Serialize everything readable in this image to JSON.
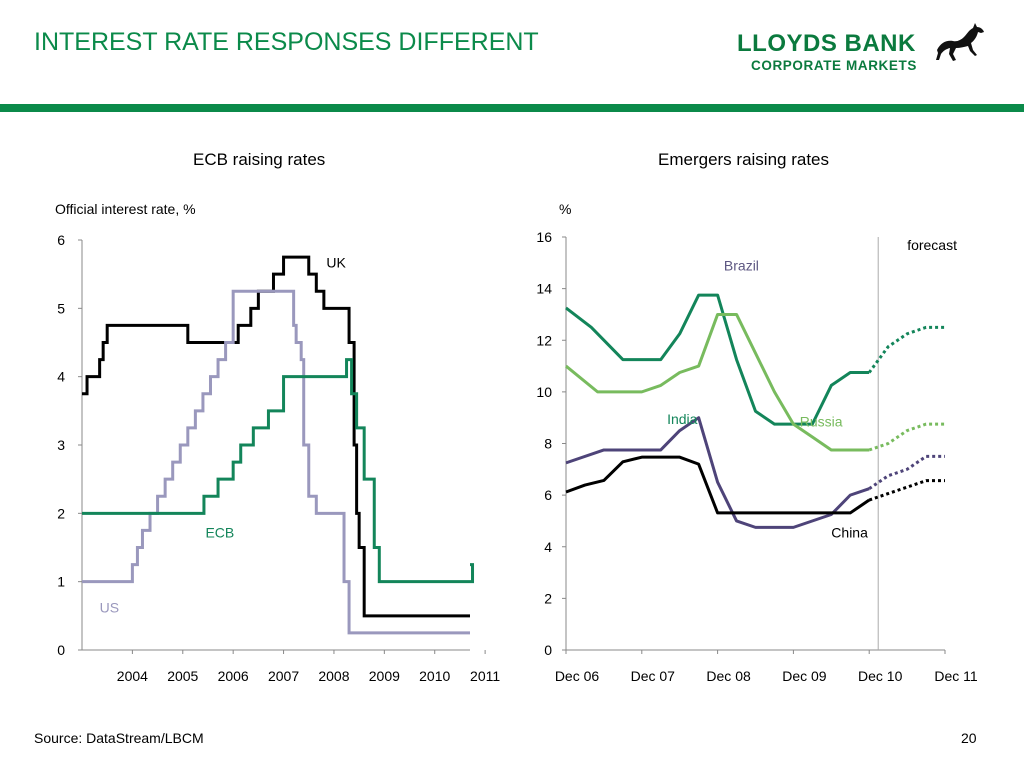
{
  "slide": {
    "title": "INTEREST RATE RESPONSES DIFFERENT",
    "logo_line1": "LLOYDS BANK",
    "logo_line2": "CORPORATE MARKETS",
    "source": "Source: DataStream/LBCM",
    "page_number": "20"
  },
  "colors": {
    "brand_green": "#0b8a4a",
    "uk": "#000000",
    "us": "#9a98bd",
    "ecb": "#13855a",
    "brazil": "#13855a",
    "russia": "#78bb5e",
    "india": "#4e4479",
    "china": "#000000"
  },
  "chart_data": [
    {
      "type": "line",
      "title": "ECB raising rates",
      "ylabel": "Official interest rate, %",
      "ylim": [
        0,
        6
      ],
      "yticks": [
        "0",
        "1",
        "2",
        "3",
        "4",
        "5",
        "6"
      ],
      "xlim": [
        2003.5,
        2011.2
      ],
      "xticks": [
        "2004",
        "2005",
        "2006",
        "2007",
        "2008",
        "2009",
        "2010",
        "2011"
      ],
      "step": true,
      "series": [
        {
          "name": "UK",
          "color": "#000000",
          "x": [
            2003.5,
            2003.6,
            2003.85,
            2003.92,
            2004.0,
            2004.1,
            2004.6,
            2005.6,
            2006.6,
            2006.85,
            2007.0,
            2007.3,
            2007.5,
            2008.0,
            2008.15,
            2008.3,
            2008.8,
            2008.9,
            2008.95,
            2009.0,
            2009.1,
            2011.2
          ],
          "y": [
            3.75,
            4.0,
            4.25,
            4.5,
            4.75,
            4.75,
            4.75,
            4.5,
            4.75,
            5.0,
            5.25,
            5.5,
            5.75,
            5.5,
            5.25,
            5.0,
            4.5,
            3.0,
            2.0,
            1.5,
            0.5,
            0.5
          ]
        },
        {
          "name": "US",
          "color": "#9a98bd",
          "x": [
            2003.5,
            2004.5,
            2004.6,
            2004.7,
            2004.85,
            2005.0,
            2005.15,
            2005.3,
            2005.45,
            2005.6,
            2005.75,
            2005.9,
            2006.05,
            2006.2,
            2006.35,
            2006.5,
            2007.7,
            2007.75,
            2007.85,
            2007.9,
            2008.0,
            2008.15,
            2008.3,
            2008.7,
            2008.8,
            2008.95,
            2011.2
          ],
          "y": [
            1.0,
            1.25,
            1.5,
            1.75,
            2.0,
            2.25,
            2.5,
            2.75,
            3.0,
            3.25,
            3.5,
            3.75,
            4.0,
            4.25,
            4.5,
            5.25,
            4.75,
            4.5,
            4.25,
            3.0,
            2.25,
            2.0,
            2.0,
            1.0,
            0.25,
            0.25,
            0.25
          ]
        },
        {
          "name": "ECB",
          "color": "#13855a",
          "x": [
            2003.5,
            2005.92,
            2006.2,
            2006.5,
            2006.65,
            2006.9,
            2007.2,
            2007.5,
            2008.5,
            2008.75,
            2008.85,
            2008.95,
            2009.1,
            2009.3,
            2009.4,
            2011.2,
            2011.25
          ],
          "y": [
            2.0,
            2.25,
            2.5,
            2.75,
            3.0,
            3.25,
            3.5,
            4.0,
            4.0,
            4.25,
            3.75,
            3.25,
            2.5,
            1.5,
            1.0,
            1.0,
            1.25
          ]
        }
      ],
      "annotations": [
        "UK",
        "US",
        "ECB"
      ]
    },
    {
      "type": "line",
      "title": "Emergers raising rates",
      "ylabel": "%",
      "ylim": [
        0,
        16
      ],
      "yticks": [
        "0",
        "2",
        "4",
        "6",
        "8",
        "10",
        "12",
        "14",
        "16"
      ],
      "xlim": [
        "Dec 06",
        "Dec 11"
      ],
      "xticks": [
        "Dec 06",
        "Dec 07",
        "Dec 08",
        "Dec 09",
        "Dec 10",
        "Dec 11"
      ],
      "forecast_start": "Dec 10",
      "forecast_label": "forecast",
      "series": [
        {
          "name": "Brazil",
          "color": "#13855a",
          "x": [
            "Dec 06",
            "Apr 07",
            "Sep 07",
            "Dec 07",
            "Mar 08",
            "Jun 08",
            "Sep 08",
            "Dec 08",
            "Mar 09",
            "Jun 09",
            "Sep 09",
            "Dec 09",
            "Mar 10",
            "Jun 10",
            "Sep 10",
            "Dec 10",
            "Mar 11",
            "Jun 11",
            "Sep 11",
            "Dec 11"
          ],
          "y": [
            13.25,
            12.5,
            11.25,
            11.25,
            11.25,
            12.25,
            13.75,
            13.75,
            11.25,
            9.25,
            8.75,
            8.75,
            8.75,
            10.25,
            10.75,
            10.75,
            11.75,
            12.25,
            12.5,
            12.5
          ],
          "forecast_from_index": 15
        },
        {
          "name": "Russia",
          "color": "#78bb5e",
          "x": [
            "Dec 06",
            "May 07",
            "Sep 07",
            "Dec 07",
            "Mar 08",
            "Jun 08",
            "Sep 08",
            "Dec 08",
            "Mar 09",
            "Jun 09",
            "Sep 09",
            "Dec 09",
            "Mar 10",
            "Jun 10",
            "Sep 10",
            "Dec 10",
            "Mar 11",
            "Jun 11",
            "Sep 11",
            "Dec 11"
          ],
          "y": [
            11.0,
            10.0,
            10.0,
            10.0,
            10.25,
            10.75,
            11.0,
            13.0,
            13.0,
            11.5,
            10.0,
            8.75,
            8.25,
            7.75,
            7.75,
            7.75,
            8.0,
            8.5,
            8.75,
            8.75
          ],
          "forecast_from_index": 15
        },
        {
          "name": "India",
          "color": "#4e4479",
          "x": [
            "Dec 06",
            "Jun 07",
            "Dec 07",
            "Mar 08",
            "Jun 08",
            "Sep 08",
            "Dec 08",
            "Mar 09",
            "Jun 09",
            "Dec 09",
            "Jun 10",
            "Sep 10",
            "Dec 10",
            "Mar 11",
            "Jun 11",
            "Sep 11",
            "Dec 11"
          ],
          "y": [
            7.25,
            7.75,
            7.75,
            7.75,
            8.5,
            9.0,
            6.5,
            5.0,
            4.75,
            4.75,
            5.25,
            6.0,
            6.25,
            6.75,
            7.0,
            7.5,
            7.5
          ],
          "forecast_from_index": 12
        },
        {
          "name": "China",
          "color": "#000000",
          "x": [
            "Dec 06",
            "Mar 07",
            "Jun 07",
            "Sep 07",
            "Dec 07",
            "Mar 08",
            "Jun 08",
            "Sep 08",
            "Dec 08",
            "Jun 09",
            "Dec 09",
            "Jun 10",
            "Sep 10",
            "Dec 10",
            "Mar 11",
            "Jun 11",
            "Sep 11",
            "Dec 11"
          ],
          "y": [
            6.12,
            6.39,
            6.57,
            7.29,
            7.47,
            7.47,
            7.47,
            7.2,
            5.31,
            5.31,
            5.31,
            5.31,
            5.31,
            5.81,
            6.06,
            6.31,
            6.56,
            6.56
          ],
          "forecast_from_index": 13
        }
      ],
      "annotations": [
        "Brazil",
        "Russia",
        "India",
        "China",
        "forecast"
      ]
    }
  ]
}
